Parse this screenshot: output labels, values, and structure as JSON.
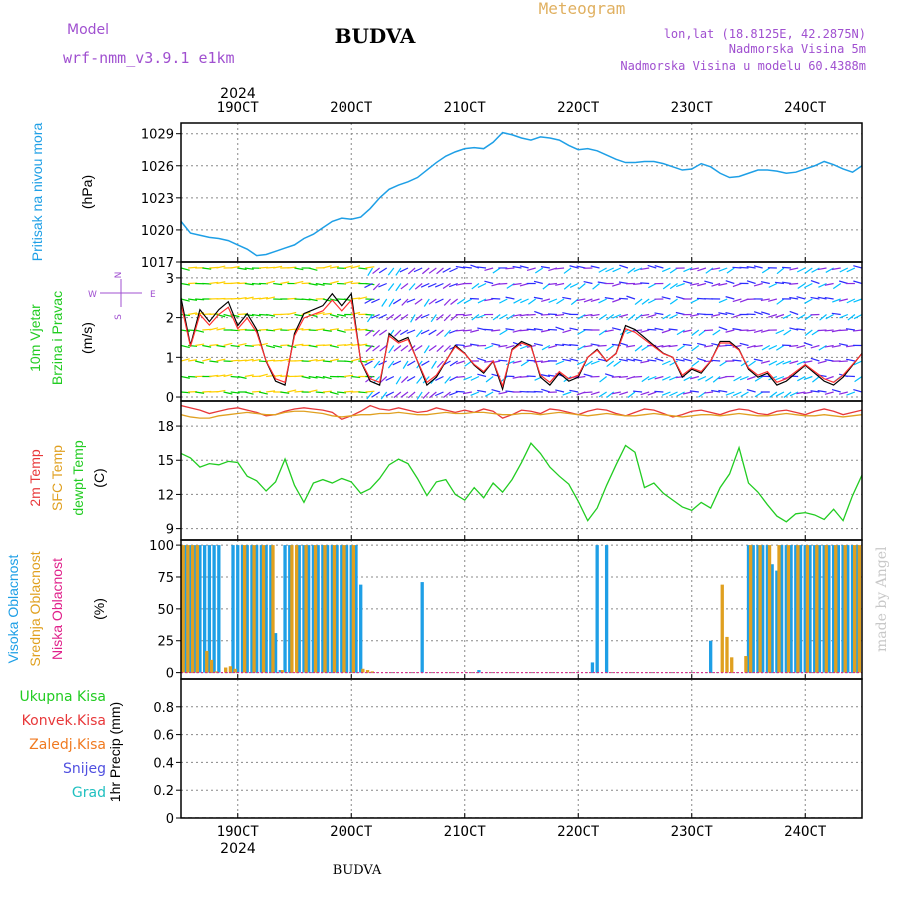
{
  "header": {
    "model_label": "Model",
    "model_name": "wrf-nmm_v3.9.1 e1km",
    "title": "BUDVA",
    "meteogram_label": "Meteogram",
    "lonlat": "lon,lat (18.8125E, 42.2875N)",
    "elevation": "Nadmorska Visina 5m",
    "model_elevation": "Nadmorska Visina u modelu 60.4388m"
  },
  "footer": {
    "location": "BUDVA",
    "credit": "made by Angel"
  },
  "year": "2024",
  "colors": {
    "pressure": "#1e9fe6",
    "temp2m": "#e8383a",
    "sfc": "#e0a020",
    "dew": "#22cc22",
    "high": "#1e9fe6",
    "mid": "#e0a020",
    "low": "#e0208a",
    "precip_total": "#22cc22",
    "precip_conv": "#e8383a",
    "precip_frz": "#f07a20",
    "precip_snow": "#5050e0",
    "precip_grad": "#20c0c0",
    "grid": "#888888"
  },
  "chart_data": [
    {
      "type": "line",
      "name": "pressure",
      "ylabel_lines": [
        "Pritisak na nivou mora",
        "(hPa)"
      ],
      "ylim": [
        1017,
        1030
      ],
      "yticks": [
        1017,
        1020,
        1023,
        1026,
        1029
      ],
      "xlim": [
        0,
        144
      ],
      "xticks": [
        {
          "x": 12,
          "label": "19OCT"
        },
        {
          "x": 36,
          "label": "20OCT"
        },
        {
          "x": 60,
          "label": "21OCT"
        },
        {
          "x": 84,
          "label": "22OCT"
        },
        {
          "x": 108,
          "label": "23OCT"
        },
        {
          "x": 132,
          "label": "24OCT"
        }
      ],
      "x": [
        0,
        2,
        4,
        6,
        8,
        10,
        12,
        14,
        16,
        18,
        20,
        22,
        24,
        26,
        28,
        30,
        32,
        34,
        36,
        38,
        40,
        42,
        44,
        46,
        48,
        50,
        52,
        54,
        56,
        58,
        60,
        62,
        64,
        66,
        68,
        70,
        72,
        74,
        76,
        78,
        80,
        82,
        84,
        86,
        88,
        90,
        92,
        94,
        96,
        98,
        100,
        102,
        104,
        106,
        108,
        110,
        112,
        114,
        116,
        118,
        120,
        122,
        124,
        126,
        128,
        130,
        132,
        134,
        136,
        138,
        140,
        142,
        144
      ],
      "values": [
        1020.8,
        1019.7,
        1019.5,
        1019.3,
        1019.2,
        1019.0,
        1018.6,
        1018.2,
        1017.6,
        1017.7,
        1018.0,
        1018.3,
        1018.6,
        1019.2,
        1019.6,
        1020.2,
        1020.8,
        1021.1,
        1021.0,
        1021.2,
        1022.0,
        1023.0,
        1023.8,
        1024.2,
        1024.5,
        1024.9,
        1025.6,
        1026.3,
        1026.9,
        1027.3,
        1027.6,
        1027.7,
        1027.6,
        1028.2,
        1029.1,
        1028.9,
        1028.6,
        1028.4,
        1028.7,
        1028.6,
        1028.4,
        1027.9,
        1027.5,
        1027.6,
        1027.4,
        1027.0,
        1026.6,
        1026.3,
        1026.3,
        1026.4,
        1026.4,
        1026.2,
        1025.9,
        1025.6,
        1025.7,
        1026.2,
        1025.9,
        1025.3,
        1024.9,
        1025.0,
        1025.3,
        1025.6,
        1025.6,
        1025.5,
        1025.3,
        1025.4,
        1025.7,
        1026.0,
        1026.4,
        1026.1,
        1025.7,
        1025.4,
        1026.0
      ]
    },
    {
      "type": "line",
      "name": "wind",
      "ylabel_lines": [
        "10m Vjetar",
        "Brzina i Pravac",
        "(m/s)"
      ],
      "compass": [
        "N",
        "W",
        "E",
        "S"
      ],
      "ylim": [
        -0.1,
        3.4
      ],
      "yticks": [
        0,
        1,
        2,
        3
      ],
      "xlim": [
        0,
        144
      ],
      "x": [
        0,
        2,
        4,
        6,
        8,
        10,
        12,
        14,
        16,
        18,
        20,
        22,
        24,
        26,
        28,
        30,
        32,
        34,
        36,
        38,
        40,
        42,
        44,
        46,
        48,
        50,
        52,
        54,
        56,
        58,
        60,
        62,
        64,
        66,
        68,
        70,
        72,
        74,
        76,
        78,
        80,
        82,
        84,
        86,
        88,
        90,
        92,
        94,
        96,
        98,
        100,
        102,
        104,
        106,
        108,
        110,
        112,
        114,
        116,
        118,
        120,
        122,
        124,
        126,
        128,
        130,
        132,
        134,
        136,
        138,
        140,
        142,
        144
      ],
      "values": [
        2.5,
        1.3,
        2.2,
        1.9,
        2.2,
        2.4,
        1.8,
        2.1,
        1.7,
        0.9,
        0.4,
        0.3,
        1.6,
        2.1,
        2.2,
        2.3,
        2.6,
        2.3,
        2.6,
        0.9,
        0.4,
        0.3,
        1.6,
        1.4,
        1.5,
        0.9,
        0.3,
        0.5,
        0.9,
        1.3,
        1.1,
        0.8,
        0.6,
        0.9,
        0.2,
        1.2,
        1.4,
        1.3,
        0.5,
        0.3,
        0.6,
        0.4,
        0.5,
        1.0,
        1.2,
        0.9,
        1.1,
        1.8,
        1.7,
        1.5,
        1.3,
        1.1,
        1.0,
        0.5,
        0.7,
        0.6,
        0.9,
        1.4,
        1.4,
        1.2,
        0.7,
        0.5,
        0.6,
        0.3,
        0.4,
        0.6,
        0.8,
        0.6,
        0.4,
        0.3,
        0.5,
        0.8,
        1.1
      ]
    },
    {
      "type": "line",
      "name": "temperature",
      "ylabel_lines": [
        "2m Temp",
        "SFC Temp",
        "dewpt Temp",
        "(C)"
      ],
      "ylim": [
        8,
        20.2
      ],
      "yticks": [
        9,
        12,
        15,
        18
      ],
      "xlim": [
        0,
        144
      ],
      "x": [
        0,
        2,
        4,
        6,
        8,
        10,
        12,
        14,
        16,
        18,
        20,
        22,
        24,
        26,
        28,
        30,
        32,
        34,
        36,
        38,
        40,
        42,
        44,
        46,
        48,
        50,
        52,
        54,
        56,
        58,
        60,
        62,
        64,
        66,
        68,
        70,
        72,
        74,
        76,
        78,
        80,
        82,
        84,
        86,
        88,
        90,
        92,
        94,
        96,
        98,
        100,
        102,
        104,
        106,
        108,
        110,
        112,
        114,
        116,
        118,
        120,
        122,
        124,
        126,
        128,
        130,
        132,
        134,
        136,
        138,
        140,
        142,
        144
      ],
      "series": [
        {
          "name": "2m Temp",
          "values": [
            19.8,
            19.6,
            19.4,
            19.1,
            19.3,
            19.5,
            19.6,
            19.4,
            19.2,
            18.9,
            19.0,
            19.3,
            19.5,
            19.6,
            19.5,
            19.4,
            19.2,
            18.6,
            18.9,
            19.3,
            19.8,
            19.5,
            19.4,
            19.6,
            19.4,
            19.2,
            19.3,
            19.6,
            19.4,
            19.2,
            19.4,
            19.2,
            19.5,
            19.3,
            18.7,
            19.0,
            19.4,
            19.3,
            19.1,
            19.5,
            19.4,
            19.2,
            19.0,
            19.3,
            19.5,
            19.4,
            19.1,
            18.9,
            19.2,
            19.5,
            19.4,
            19.1,
            18.8,
            19.0,
            19.3,
            19.4,
            19.2,
            19.0,
            19.3,
            19.5,
            19.4,
            19.1,
            19.0,
            19.3,
            19.4,
            19.2,
            19.0,
            19.3,
            19.5,
            19.3,
            19.0,
            19.2,
            19.4
          ]
        },
        {
          "name": "SFC Temp",
          "values": [
            19.0,
            18.8,
            18.7,
            18.7,
            18.9,
            19.0,
            19.1,
            19.2,
            19.1,
            19.0,
            19.0,
            19.2,
            19.3,
            19.3,
            19.2,
            19.1,
            18.9,
            18.8,
            18.9,
            19.0,
            19.0,
            19.1,
            19.1,
            19.2,
            19.1,
            19.0,
            19.0,
            19.1,
            19.2,
            19.1,
            19.1,
            19.2,
            19.2,
            19.1,
            19.0,
            19.0,
            19.1,
            19.1,
            19.0,
            19.1,
            19.2,
            19.1,
            19.0,
            18.9,
            19.0,
            19.1,
            19.0,
            18.9,
            18.9,
            19.0,
            19.1,
            19.0,
            18.9,
            18.8,
            18.9,
            19.0,
            19.0,
            18.9,
            19.0,
            19.1,
            19.0,
            18.9,
            18.9,
            19.0,
            19.1,
            19.0,
            18.9,
            18.9,
            19.0,
            18.9,
            18.8,
            18.9,
            19.0
          ]
        },
        {
          "name": "dewpt Temp",
          "values": [
            15.6,
            15.2,
            14.4,
            14.7,
            14.6,
            14.9,
            14.8,
            13.6,
            13.2,
            12.3,
            13.1,
            15.1,
            12.8,
            11.3,
            13.0,
            13.3,
            13.0,
            13.4,
            13.1,
            12.1,
            12.5,
            13.4,
            14.6,
            15.1,
            14.7,
            13.4,
            11.9,
            13.1,
            13.3,
            12.0,
            11.5,
            12.6,
            11.7,
            13.0,
            12.2,
            13.3,
            14.8,
            16.5,
            15.6,
            14.4,
            13.6,
            12.9,
            11.4,
            9.7,
            10.8,
            12.8,
            14.6,
            16.3,
            15.7,
            12.6,
            13.0,
            12.1,
            11.5,
            10.9,
            10.6,
            11.3,
            10.8,
            12.6,
            13.8,
            16.1,
            13.0,
            12.2,
            11.1,
            10.1,
            9.6,
            10.3,
            10.4,
            10.2,
            9.8,
            10.7,
            9.7,
            11.9,
            13.7
          ]
        }
      ]
    },
    {
      "type": "bar",
      "name": "clouds",
      "ylabel_lines": [
        "Visoka Oblacnost",
        "Srednja Oblacnost",
        "Niska Oblacnost",
        "(%)"
      ],
      "ylim": [
        -5,
        104
      ],
      "yticks": [
        0,
        25,
        50,
        75,
        100
      ],
      "xlim": [
        0,
        144
      ],
      "series": [
        {
          "name": "Visoka Oblacnost",
          "x": [
            1,
            2,
            3,
            4,
            5,
            6,
            7,
            8,
            11,
            12,
            13,
            14,
            15,
            16,
            17,
            18,
            19,
            20,
            21,
            22,
            23,
            25,
            26,
            27,
            28,
            29,
            30,
            31,
            32,
            33,
            34,
            35,
            36,
            37,
            38,
            51,
            63,
            87,
            88,
            90,
            112,
            120,
            121,
            122,
            123,
            124,
            125,
            126,
            127,
            128,
            129,
            130,
            131,
            132,
            133,
            134,
            135,
            136,
            137,
            138,
            139,
            140,
            141,
            142,
            143
          ],
          "values": [
            100,
            100,
            100,
            100,
            100,
            100,
            100,
            100,
            100,
            100,
            100,
            100,
            100,
            100,
            100,
            100,
            100,
            31,
            2,
            100,
            100,
            100,
            100,
            100,
            100,
            100,
            100,
            100,
            100,
            100,
            100,
            100,
            100,
            100,
            69,
            71,
            2,
            8,
            100,
            100,
            25,
            100,
            100,
            100,
            100,
            100,
            85,
            80,
            100,
            100,
            100,
            100,
            100,
            100,
            100,
            100,
            100,
            100,
            100,
            100,
            100,
            100,
            100,
            100,
            100
          ]
        },
        {
          "name": "Srednja Oblacnost",
          "x": [
            0,
            1,
            2,
            3,
            5,
            6,
            7,
            9,
            10,
            11,
            13,
            15,
            17,
            19,
            21,
            23,
            24,
            26,
            28,
            30,
            32,
            34,
            36,
            38,
            39,
            40,
            114,
            115,
            116,
            119,
            120,
            122,
            124,
            126,
            128,
            130,
            132,
            134,
            136,
            138,
            140,
            142,
            143
          ],
          "values": [
            100,
            100,
            100,
            100,
            17,
            10,
            1,
            4,
            5,
            3,
            100,
            100,
            100,
            100,
            2,
            100,
            100,
            100,
            100,
            100,
            100,
            100,
            100,
            3,
            2,
            1,
            69,
            28,
            12,
            13,
            100,
            100,
            100,
            100,
            100,
            100,
            100,
            100,
            100,
            100,
            100,
            100,
            100
          ]
        },
        {
          "name": "Niska Oblacnost",
          "x": [],
          "values": []
        }
      ]
    },
    {
      "type": "bar",
      "name": "precipitation",
      "ylabel_lines": [
        "Ukupna Kisa",
        "Konvek.Kisa",
        "Zaledj.Kisa",
        "Snijeg",
        "Grad",
        "1hr Precip (mm)"
      ],
      "ylim": [
        0,
        1.0
      ],
      "yticks": [
        0,
        0.2,
        0.4,
        0.6,
        0.8
      ],
      "ytick_labels": [
        "0",
        "0.2",
        "0.4",
        "0.6",
        "0.8"
      ],
      "xlim": [
        0,
        144
      ],
      "series": [
        {
          "name": "Ukupna Kisa",
          "values": []
        },
        {
          "name": "Konvek.Kisa",
          "values": []
        },
        {
          "name": "Zaledj.Kisa",
          "values": []
        },
        {
          "name": "Snijeg",
          "values": []
        },
        {
          "name": "Grad",
          "values": []
        }
      ]
    }
  ]
}
